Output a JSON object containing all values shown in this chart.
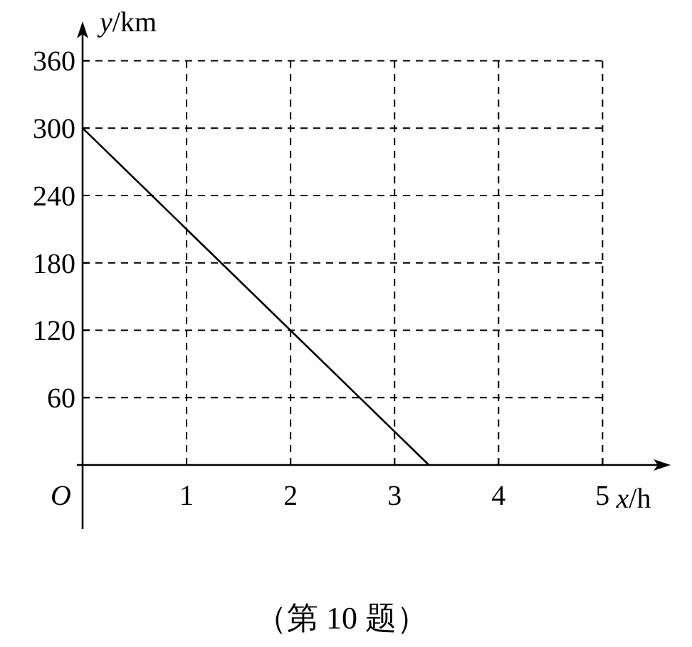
{
  "chart_data": {
    "type": "line",
    "xlabel": "*x*/h",
    "ylabel": "*y*/km",
    "x": [
      0,
      3.33
    ],
    "series": [
      {
        "color": "#000000",
        "values": [
          300,
          0
        ]
      }
    ],
    "xlim": [
      0,
      5.6
    ],
    "ylim": [
      0,
      390
    ],
    "xticks": [
      1,
      2,
      3,
      4,
      5
    ],
    "yticks": [
      60,
      120,
      180,
      240,
      300,
      360
    ],
    "grid": true,
    "marker": "none",
    "line_style": "solid",
    "annotations": [
      "*O*",
      "（第 10 题）"
    ]
  }
}
